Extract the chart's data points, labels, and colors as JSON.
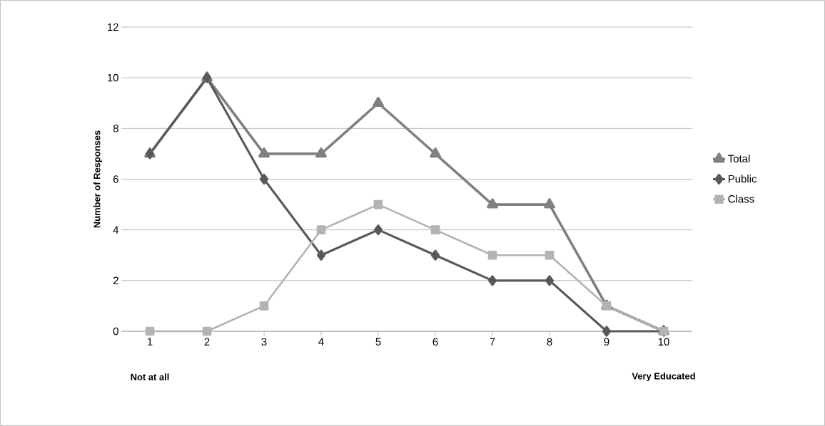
{
  "chart_data": {
    "type": "line",
    "categories": [
      "1",
      "2",
      "3",
      "4",
      "5",
      "6",
      "7",
      "8",
      "9",
      "10"
    ],
    "ylabel": "Number of Responses",
    "ylim": [
      0,
      12
    ],
    "yticks": [
      0,
      2,
      4,
      6,
      8,
      10,
      12
    ],
    "grid": "y",
    "legend": "right",
    "line_style": "solid",
    "annotations": [
      "Not at all",
      "Very Educated"
    ],
    "series": [
      {
        "name": "Total",
        "color": "#808080",
        "marker": "triangle",
        "values": [
          7,
          10,
          7,
          7,
          9,
          7,
          5,
          5,
          1,
          0
        ]
      },
      {
        "name": "Public",
        "color": "#595959",
        "marker": "diamond",
        "values": [
          7,
          10,
          6,
          3,
          4,
          3,
          2,
          2,
          0,
          0
        ]
      },
      {
        "name": "Class",
        "color": "#b3b3b3",
        "marker": "square",
        "values": [
          0,
          0,
          1,
          4,
          5,
          4,
          3,
          3,
          1,
          0
        ]
      }
    ]
  }
}
